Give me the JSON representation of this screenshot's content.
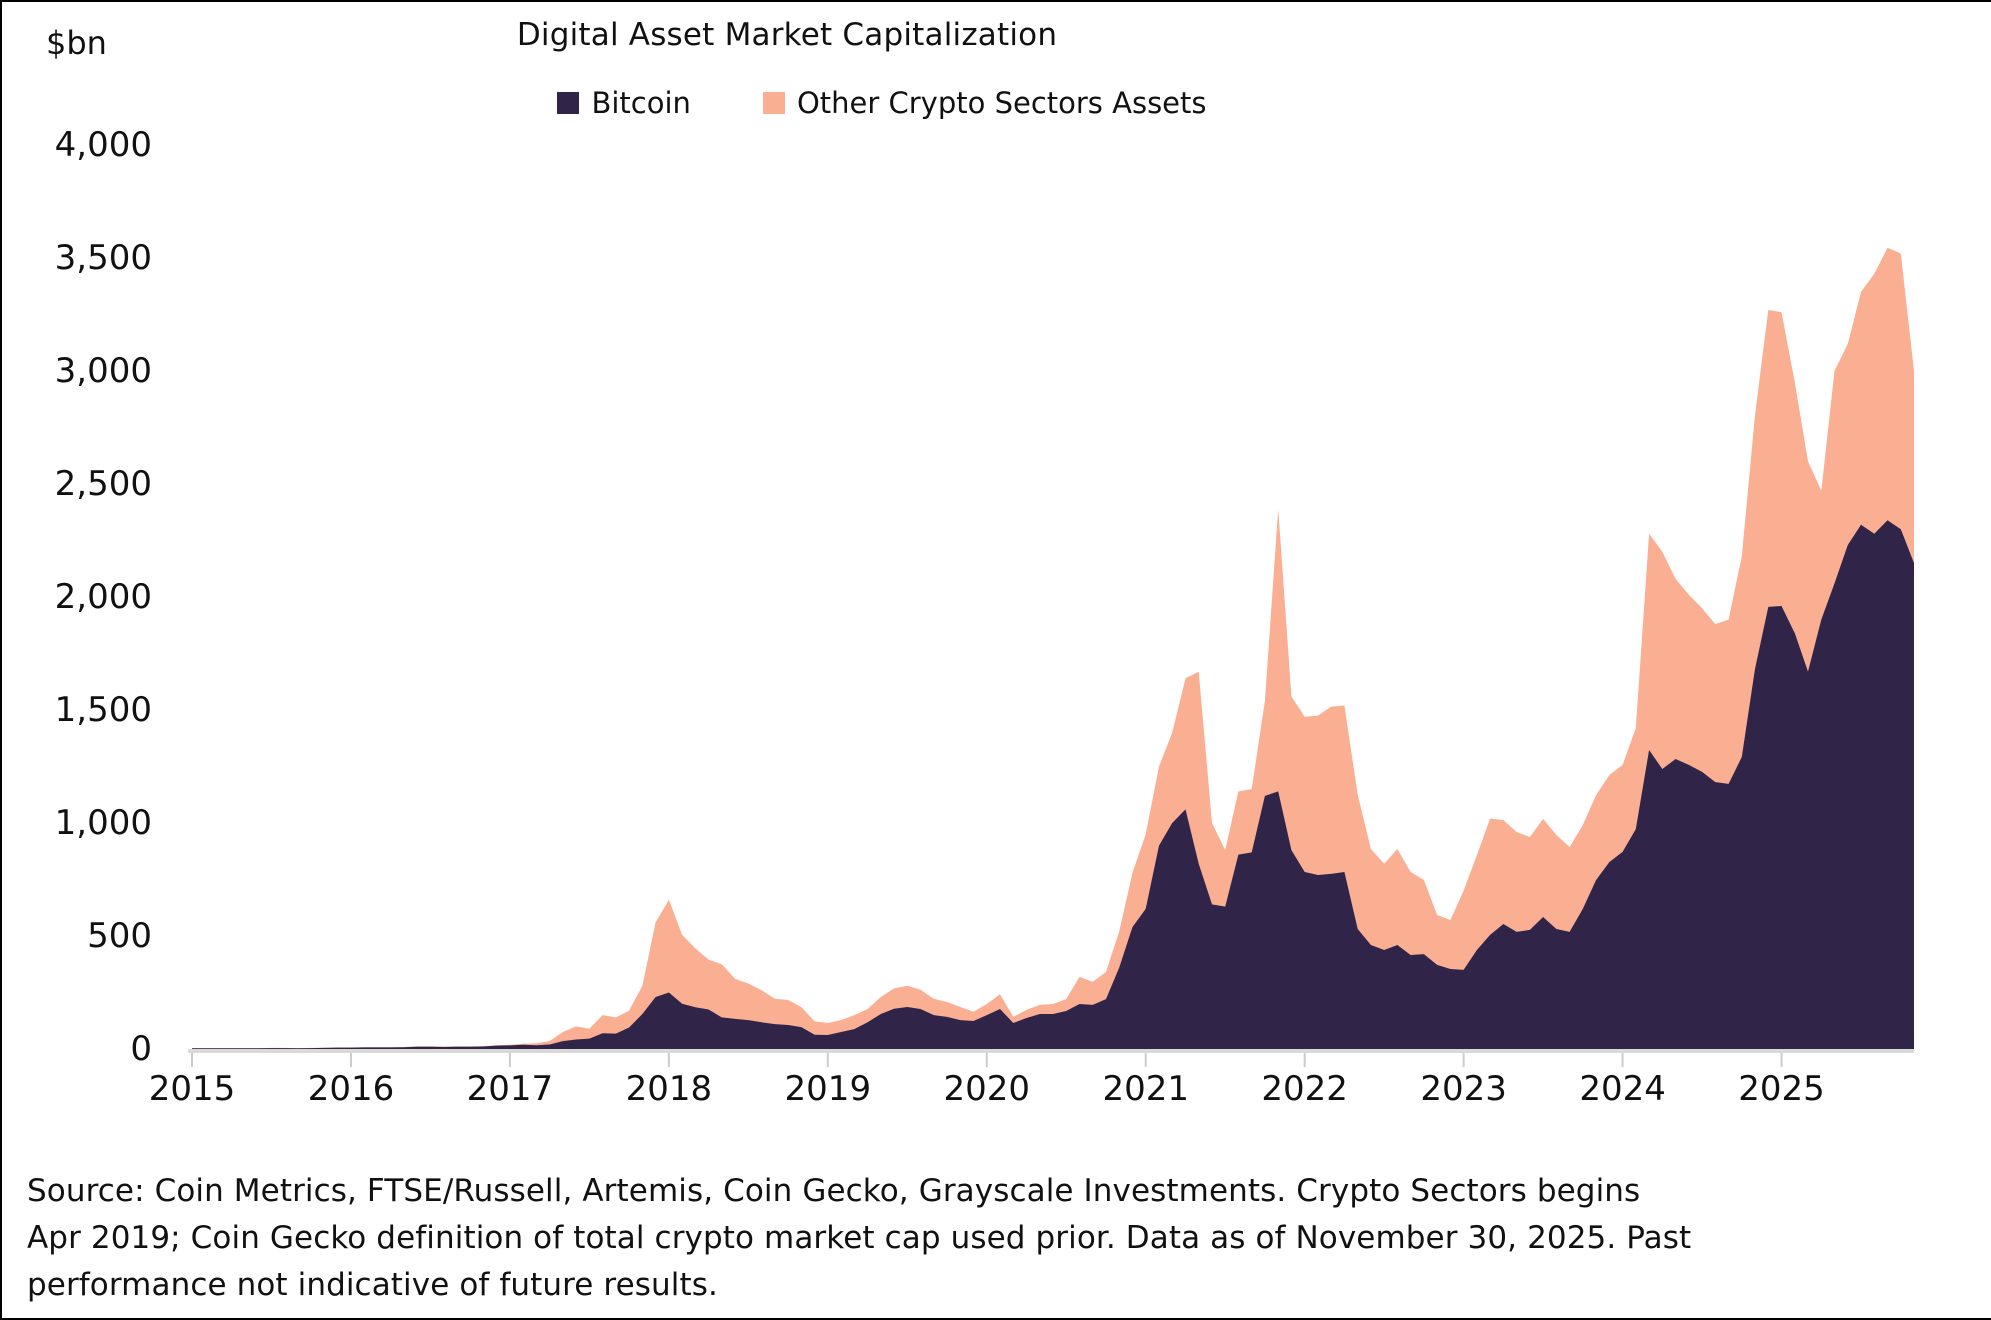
{
  "header": {
    "unit_label": "$bn",
    "title": "Digital Asset Market Capitalization"
  },
  "legend": [
    {
      "label": "Bitcoin",
      "color": "#312449"
    },
    {
      "label": "Other Crypto Sectors Assets",
      "color": "#FAAE92"
    }
  ],
  "source_lines": [
    "Source: Coin Metrics, FTSE/Russell, Artemis, Coin Gecko, Grayscale Investments. Crypto Sectors begins",
    "Apr 2019; Coin Gecko definition of total crypto market cap used prior. Data as of November 30, 2025. Past",
    "performance not indicative of future results."
  ],
  "colors": {
    "bitcoin_area": "#312449",
    "other_area": "#FAAE92",
    "axis_line": "#d9d9d9",
    "tick_mark": "#cccccc",
    "text": "#111111"
  },
  "chart_data": {
    "type": "area",
    "stacked": true,
    "title": "Digital Asset Market Capitalization",
    "ylabel": "$bn",
    "xlabel": "",
    "grid": false,
    "legend_position": "top",
    "ylim": [
      0,
      4000
    ],
    "ytick_step": 500,
    "y_tick_labels": [
      "0",
      "500",
      "1,000",
      "1,500",
      "2,000",
      "2,500",
      "3,000",
      "3,500",
      "4,000"
    ],
    "x_frequency": "monthly",
    "x_start": "2015-01",
    "x_end": "2025-11",
    "x_tick_labels": [
      "2015",
      "2016",
      "2017",
      "2018",
      "2019",
      "2020",
      "2021",
      "2022",
      "2023",
      "2024",
      "2025"
    ],
    "series": [
      {
        "name": "Bitcoin",
        "color": "#312449",
        "values": [
          3,
          3,
          3,
          3,
          3,
          3,
          4,
          4,
          3,
          4,
          5,
          6,
          6,
          7,
          7,
          7,
          8,
          10,
          10,
          9,
          10,
          10,
          11,
          15,
          16,
          19,
          17,
          20,
          35,
          42,
          46,
          70,
          68,
          95,
          155,
          230,
          250,
          200,
          185,
          175,
          140,
          133,
          128,
          118,
          110,
          106,
          97,
          63,
          62,
          75,
          88,
          118,
          155,
          178,
          186,
          177,
          150,
          142,
          128,
          124,
          150,
          177,
          115,
          137,
          155,
          155,
          168,
          199,
          195,
          221,
          360,
          540,
          620,
          900,
          1000,
          1060,
          820,
          640,
          630,
          860,
          870,
          1120,
          1140,
          880,
          783,
          770,
          775,
          783,
          531,
          460,
          438,
          460,
          416,
          420,
          372,
          354,
          350,
          438,
          505,
          553,
          518,
          527,
          584,
          531,
          518,
          620,
          748,
          827,
          872,
          973,
          1323,
          1239,
          1283,
          1257,
          1226,
          1181,
          1173,
          1292,
          1682,
          1956,
          1960,
          1840,
          1670,
          1900,
          2060,
          2230,
          2320,
          2280,
          2340,
          2300,
          2150
        ]
      },
      {
        "name": "Other Crypto Sectors Assets",
        "color": "#FAAE92",
        "values": [
          1,
          1,
          1,
          1,
          1,
          1,
          1,
          1,
          1,
          1,
          1,
          1,
          1,
          1,
          1,
          1,
          1,
          2,
          2,
          2,
          2,
          2,
          2,
          2,
          3,
          4,
          8,
          15,
          40,
          58,
          44,
          80,
          72,
          75,
          125,
          330,
          410,
          305,
          260,
          220,
          235,
          177,
          162,
          142,
          112,
          111,
          89,
          59,
          53,
          53,
          62,
          59,
          75,
          90,
          94,
          85,
          72,
          66,
          58,
          41,
          49,
          65,
          27,
          36,
          40,
          44,
          53,
          120,
          102,
          120,
          160,
          240,
          330,
          350,
          400,
          580,
          850,
          360,
          250,
          280,
          280,
          420,
          1250,
          680,
          687,
          705,
          740,
          737,
          594,
          425,
          382,
          425,
          367,
          328,
          221,
          217,
          350,
          420,
          515,
          460,
          442,
          411,
          434,
          416,
          376,
          371,
          376,
          385,
          385,
          447,
          957,
          961,
          797,
          753,
          724,
          699,
          727,
          888,
          1123,
          1314,
          1300,
          1110,
          930,
          570,
          940,
          890,
          1030,
          1150,
          1205,
          1220,
          850
        ]
      }
    ]
  }
}
